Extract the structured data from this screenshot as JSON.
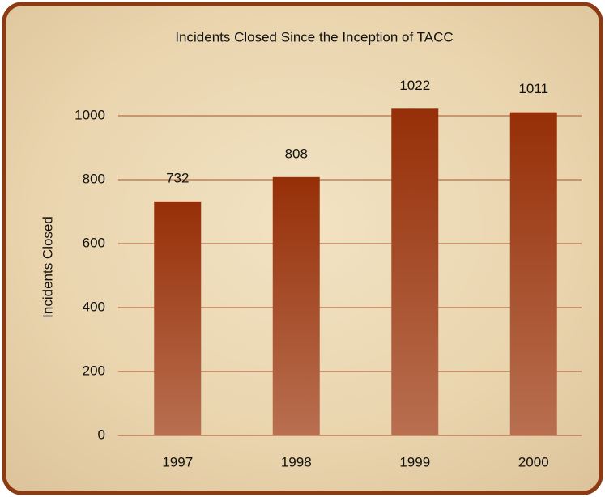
{
  "chart_data": {
    "type": "bar",
    "title": "Incidents Closed Since the Inception of TACC",
    "y_label": "Incidents Closed",
    "categories": [
      "1997",
      "1998",
      "1999",
      "2000"
    ],
    "values": [
      732,
      808,
      1022,
      1011
    ],
    "color": "#9a3510",
    "ylim": [
      0,
      1000
    ],
    "yticks": [
      0,
      200,
      400,
      600,
      800,
      1000
    ],
    "grid": true
  }
}
